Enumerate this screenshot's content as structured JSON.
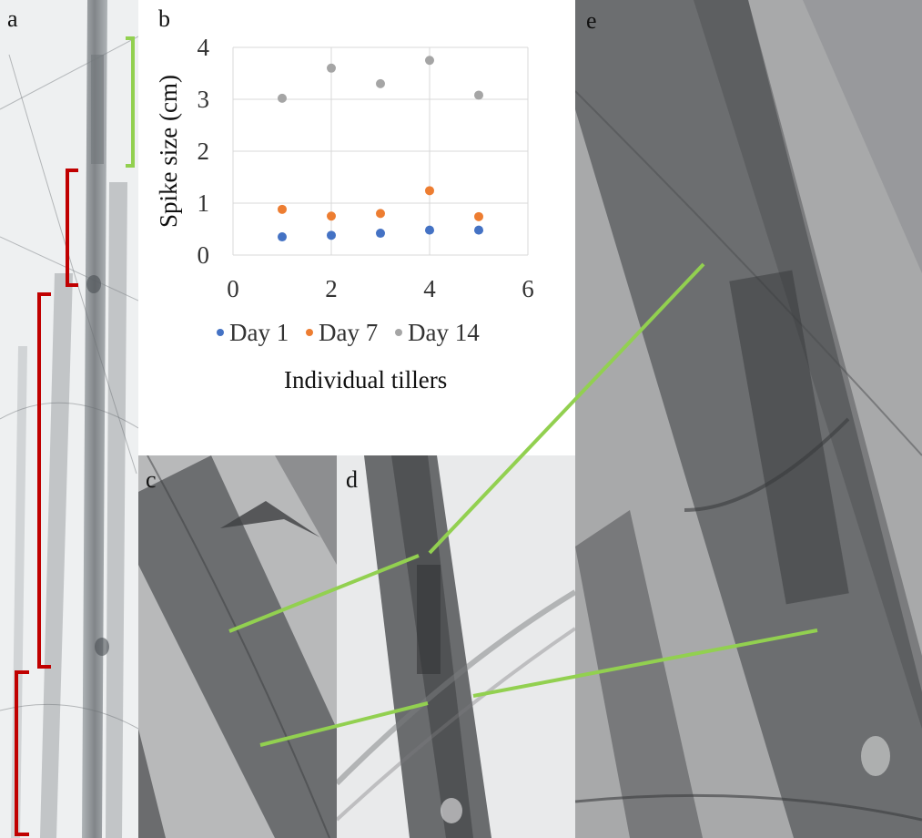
{
  "panels": {
    "a": "a",
    "b": "b",
    "c": "c",
    "d": "d",
    "e": "e"
  },
  "colors": {
    "day1": "#4472c4",
    "day7": "#ed7d31",
    "day14": "#a5a5a5",
    "bracket_green": "#92d050",
    "bracket_red": "#c00000",
    "connector": "#92d050"
  },
  "chart_data": {
    "type": "scatter",
    "title": "",
    "xlabel": "Individual tillers",
    "ylabel": "Spike size (cm)",
    "xlim": [
      0,
      6
    ],
    "ylim": [
      0,
      4
    ],
    "xticks": [
      0,
      2,
      4,
      6
    ],
    "yticks": [
      0,
      1,
      2,
      3,
      4
    ],
    "grid": true,
    "legend": "bottom",
    "series": [
      {
        "name": "Day 1",
        "color": "#4472c4",
        "x": [
          1,
          2,
          3,
          4,
          5
        ],
        "y": [
          0.35,
          0.38,
          0.42,
          0.48,
          0.48
        ]
      },
      {
        "name": "Day 7",
        "color": "#ed7d31",
        "x": [
          1,
          2,
          3,
          4,
          5
        ],
        "y": [
          0.88,
          0.75,
          0.8,
          1.24,
          0.74
        ]
      },
      {
        "name": "Day 14",
        "color": "#a5a5a5",
        "x": [
          1,
          2,
          3,
          4,
          5
        ],
        "y": [
          3.02,
          3.6,
          3.3,
          3.75,
          3.08
        ]
      }
    ]
  }
}
